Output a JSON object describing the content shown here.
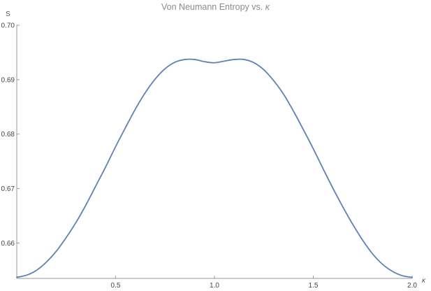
{
  "chart_data": {
    "type": "line",
    "title_text": "Von Neumann Entropy vs. ",
    "title_symbol": "κ",
    "xlabel": "κ",
    "ylabel": "S",
    "xlim": [
      0,
      2.0
    ],
    "ylim": [
      0.6535,
      0.7
    ],
    "x_ticks": [
      {
        "value": 0.5,
        "label": "0.5"
      },
      {
        "value": 1.0,
        "label": "1.0"
      },
      {
        "value": 1.5,
        "label": "1.5"
      },
      {
        "value": 2.0,
        "label": "2.0"
      }
    ],
    "y_ticks": [
      {
        "value": 0.66,
        "label": "0.66"
      },
      {
        "value": 0.67,
        "label": "0.67"
      },
      {
        "value": 0.68,
        "label": "0.68"
      },
      {
        "value": 0.69,
        "label": "0.69"
      },
      {
        "value": 0.7,
        "label": "0.70"
      }
    ],
    "grid": false,
    "color": "#5e81b5",
    "series": [
      {
        "x": [
          0.0,
          0.05,
          0.1,
          0.15,
          0.2,
          0.25,
          0.3,
          0.35,
          0.4,
          0.45,
          0.5,
          0.55,
          0.6,
          0.65,
          0.7,
          0.75,
          0.8,
          0.85,
          0.9,
          0.95,
          1.0,
          1.05,
          1.1,
          1.15,
          1.2,
          1.25,
          1.3,
          1.35,
          1.4,
          1.45,
          1.5,
          1.55,
          1.6,
          1.65,
          1.7,
          1.75,
          1.8,
          1.85,
          1.9,
          1.95,
          2.0
        ],
        "y": [
          0.6537,
          0.6541,
          0.655,
          0.6565,
          0.6585,
          0.661,
          0.6638,
          0.667,
          0.6705,
          0.674,
          0.6777,
          0.6812,
          0.6846,
          0.6876,
          0.6901,
          0.692,
          0.6932,
          0.6937,
          0.6937,
          0.6933,
          0.6931,
          0.6934,
          0.6937,
          0.6937,
          0.6931,
          0.6918,
          0.6898,
          0.6873,
          0.6842,
          0.6808,
          0.6773,
          0.6736,
          0.67,
          0.6666,
          0.6634,
          0.6605,
          0.658,
          0.6561,
          0.6548,
          0.654,
          0.6537
        ]
      }
    ]
  }
}
